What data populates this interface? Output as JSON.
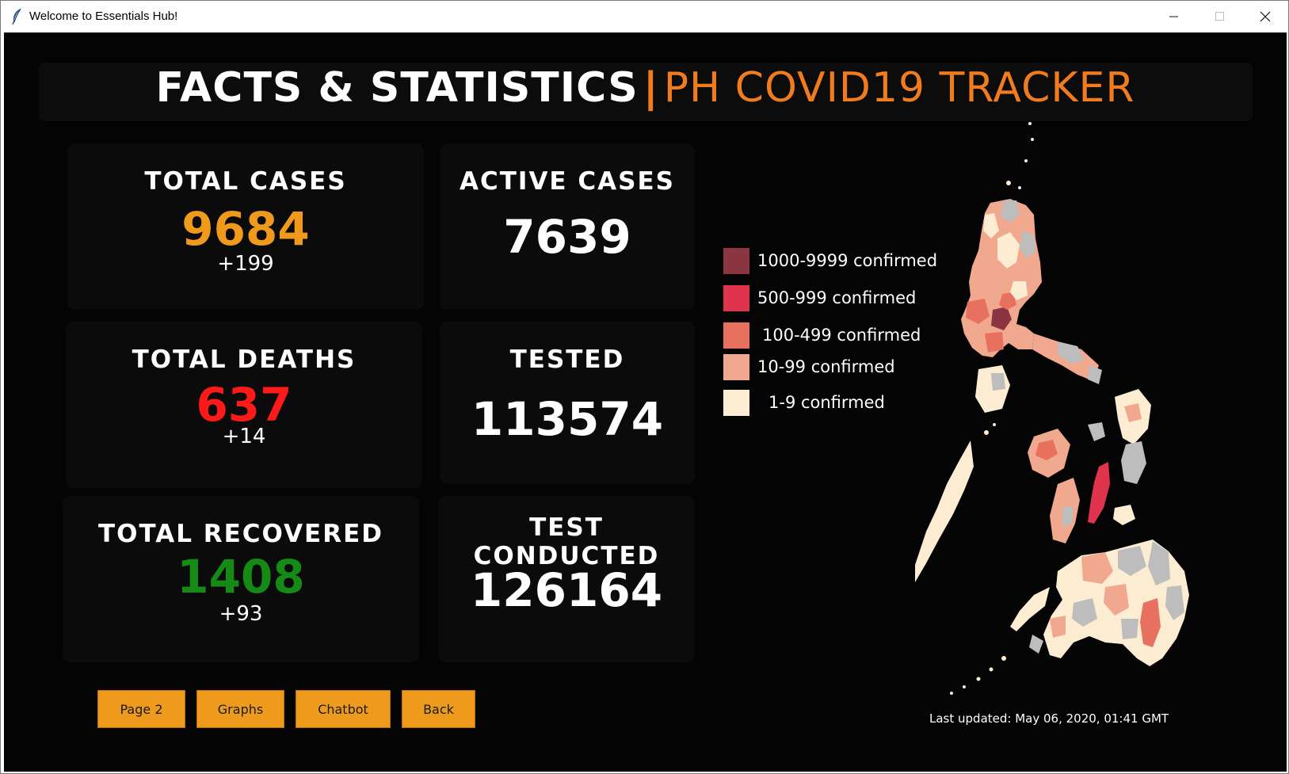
{
  "window": {
    "title": "Welcome to Essentials Hub!",
    "controls": {
      "minimize_icon": "minimize-icon",
      "maximize_icon": "maximize-icon",
      "close_icon": "close-icon"
    }
  },
  "header": {
    "title_left": "FACTS & STATISTICS",
    "separator": "|",
    "title_right": "PH COVID19 TRACKER"
  },
  "stats": {
    "total_cases": {
      "label": "TOTAL CASES",
      "value": "9684",
      "delta": "+199",
      "color": "#ef9a1c"
    },
    "active_cases": {
      "label": "ACTIVE CASES",
      "value": "7639",
      "color": "#ffffff"
    },
    "total_deaths": {
      "label": "TOTAL DEATHS",
      "value": "637",
      "delta": "+14",
      "color": "#ff1a1a"
    },
    "tested": {
      "label": "TESTED",
      "value": "113574",
      "color": "#ffffff"
    },
    "total_recovered": {
      "label": "TOTAL RECOVERED",
      "value": "1408",
      "delta": "+93",
      "color": "#168a16"
    },
    "test_conducted": {
      "label": "TEST CONDUCTED",
      "value": "126164",
      "color": "#ffffff"
    }
  },
  "legend": [
    {
      "label": "1000-9999 confirmed",
      "color": "#8a3540"
    },
    {
      "label": "500-999 confirmed",
      "color": "#e0334e"
    },
    {
      "label": "100-499 confirmed",
      "color": "#e8705f"
    },
    {
      "label": "10-99 confirmed",
      "color": "#f0a88e"
    },
    {
      "label": "1-9 confirmed",
      "color": "#fbecd2"
    }
  ],
  "nav_buttons": {
    "page2": "Page 2",
    "graphs": "Graphs",
    "chatbot": "Chatbot",
    "back": "Back"
  },
  "last_updated": "Last updated: May 06, 2020, 01:41 GMT"
}
